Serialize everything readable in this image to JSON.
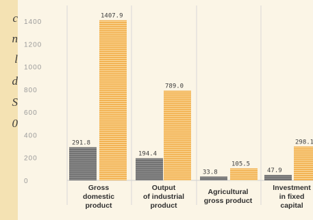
{
  "left_fragments": [
    "c",
    "n",
    "l",
    "d",
    "S",
    "0"
  ],
  "chart_data": {
    "type": "bar",
    "title": "",
    "xlabel": "",
    "ylabel": "",
    "ylim": [
      0,
      1400
    ],
    "yticks": [
      0,
      200,
      400,
      600,
      800,
      1000,
      1200,
      1400
    ],
    "grid": true,
    "categories": [
      [
        "Gross",
        "domestic",
        "product"
      ],
      [
        "Output",
        "of industrial",
        "product"
      ],
      [
        "Agricultural",
        "gross product"
      ],
      [
        "Investment",
        "in fixed",
        "capital"
      ]
    ],
    "series": [
      {
        "values": [
          291.8,
          194.4,
          33.8,
          47.9
        ],
        "labels": [
          "291.8",
          "194.4",
          "33.8",
          "47.9"
        ],
        "color": "#6f6f6f"
      },
      {
        "values": [
          1407.9,
          789.0,
          105.5,
          298.1
        ],
        "labels": [
          "1407.9",
          "789.0",
          "105.5",
          "298.1"
        ],
        "color": "#f2b150"
      }
    ]
  }
}
